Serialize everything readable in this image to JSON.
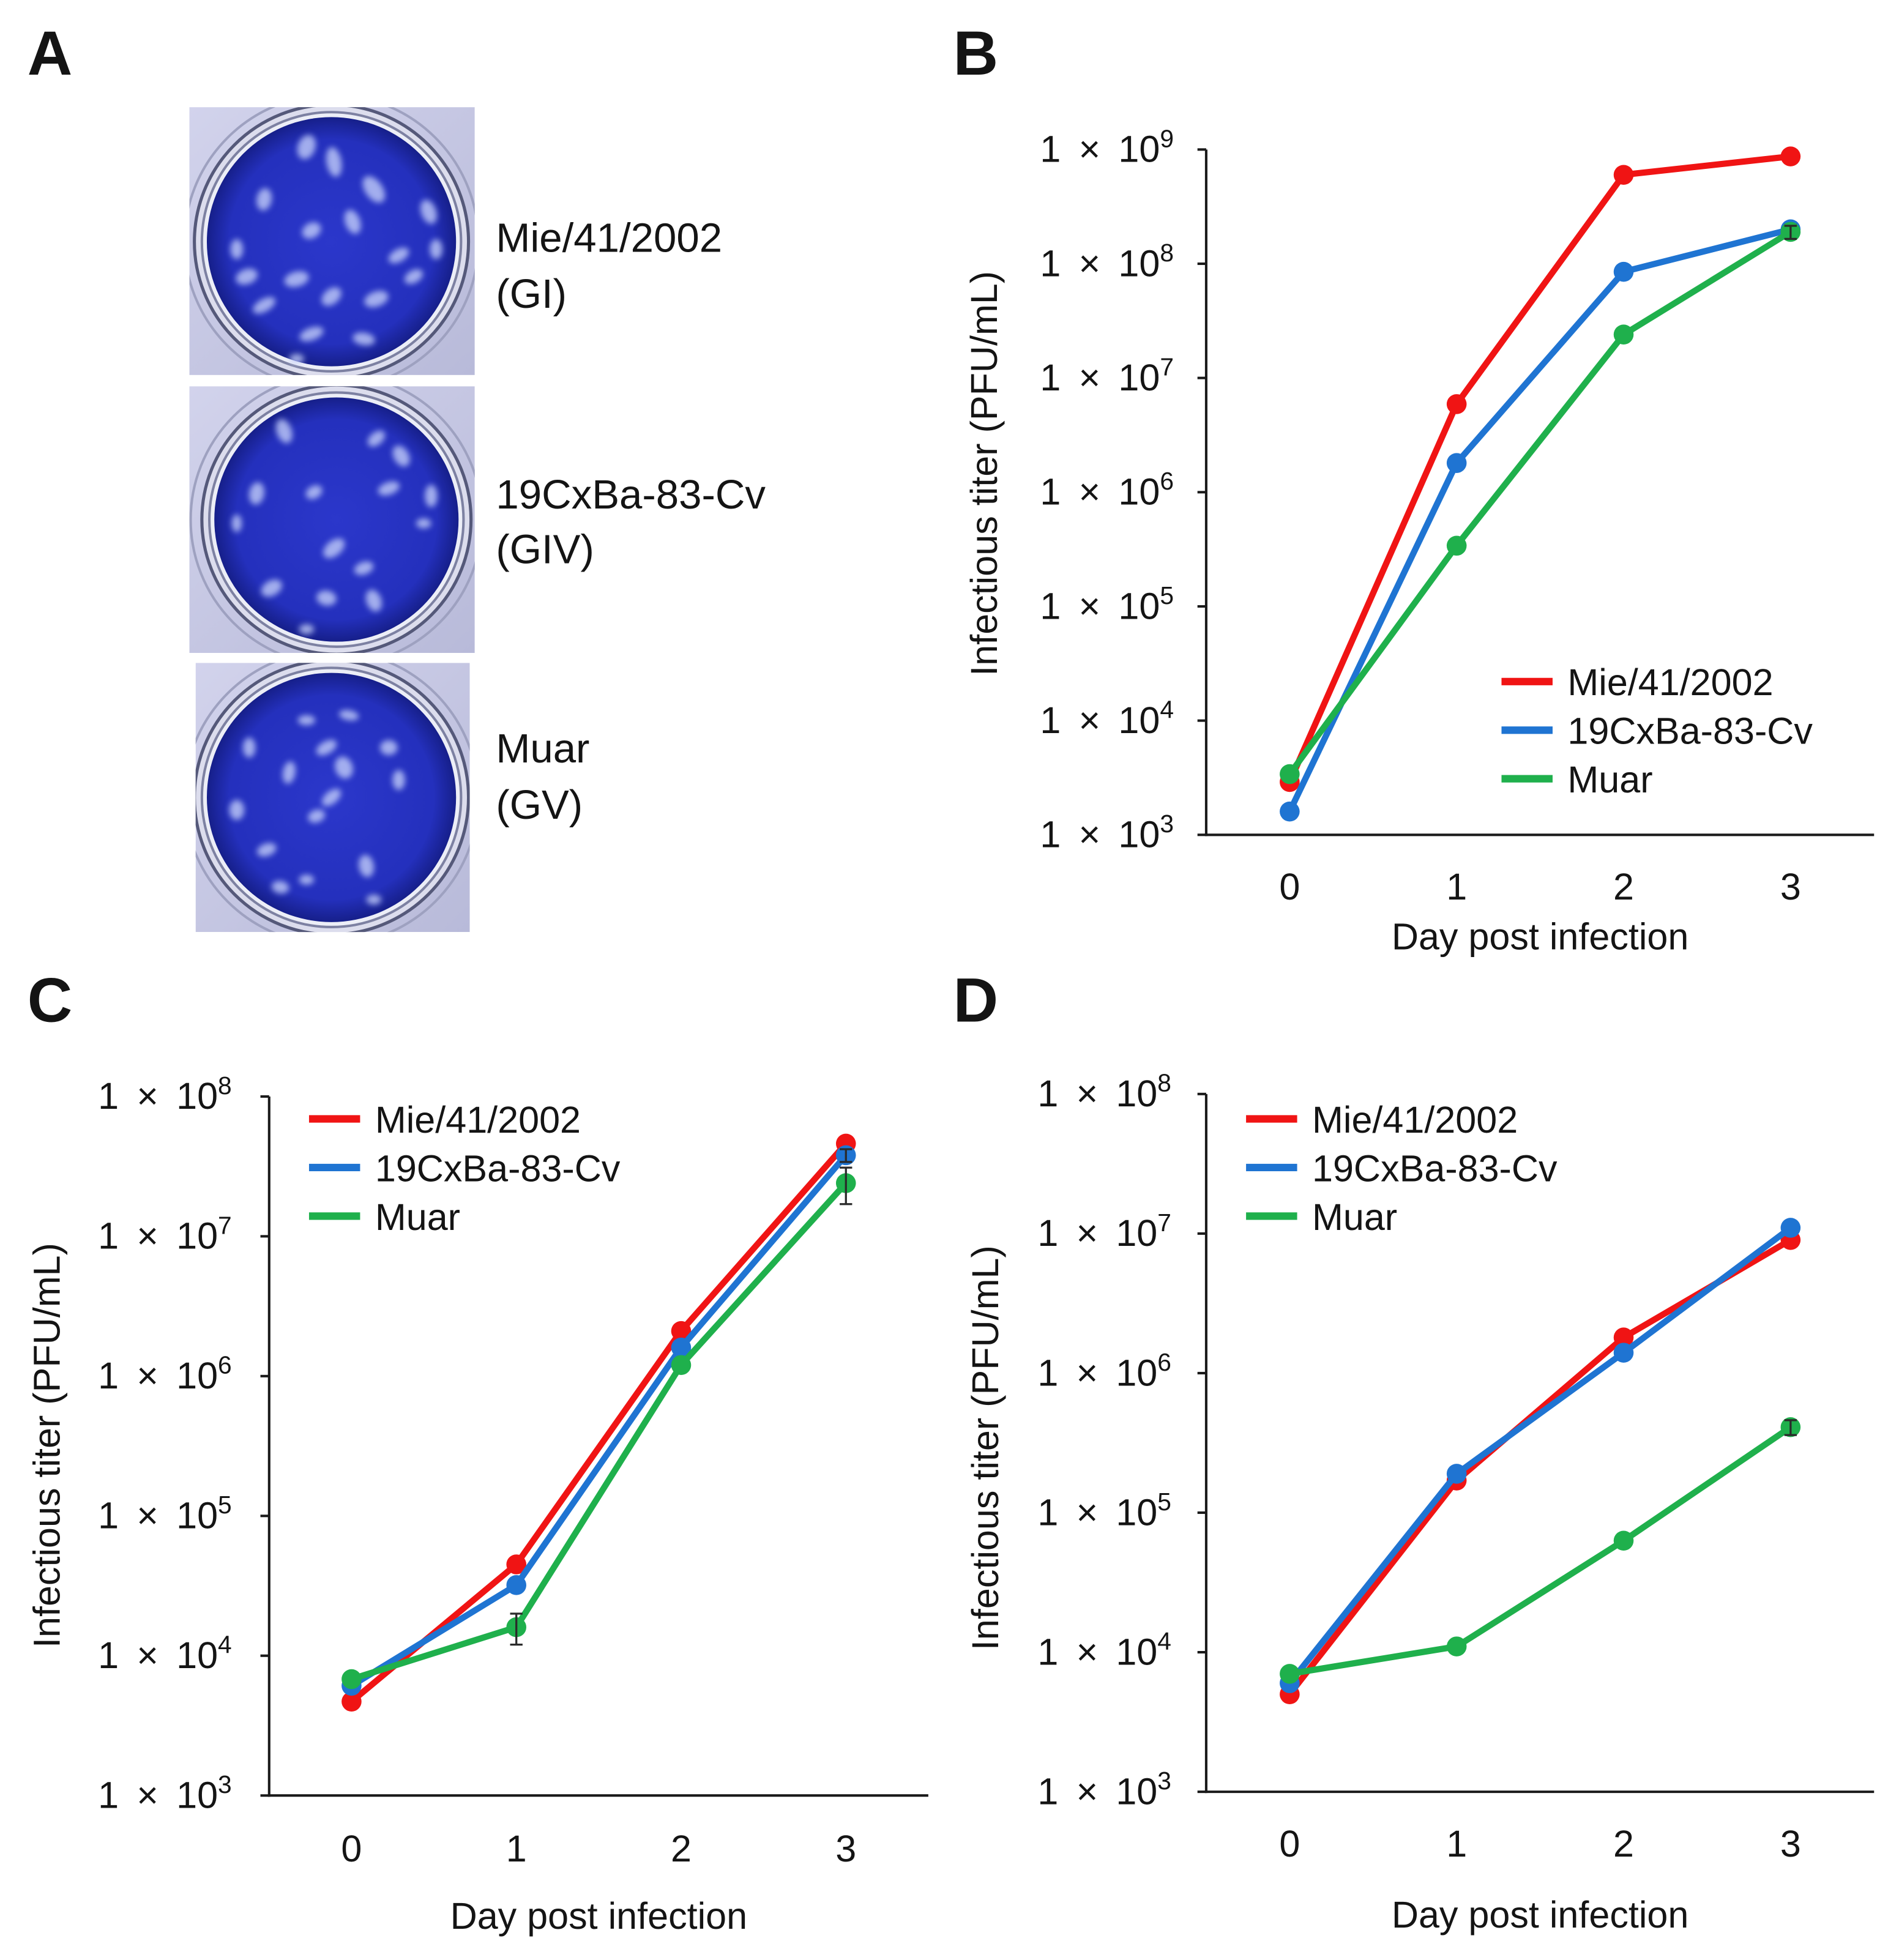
{
  "panel_a": {
    "label": "A",
    "wells": [
      {
        "strain": "Mie/41/2002",
        "genotype": "(GI)"
      },
      {
        "strain": "19CxBa-83-Cv",
        "genotype": "(GIV)"
      },
      {
        "strain": "Muar",
        "genotype": "(GV)"
      }
    ]
  },
  "chart_data": [
    {
      "panel_label": "B",
      "type": "line",
      "x": [
        0,
        1,
        2,
        3
      ],
      "xlabel": "Day post infection",
      "ylabel": "Infectious titer (PFU/mL)",
      "yscale": "log",
      "ylim": [
        1000,
        1000000000
      ],
      "y_tick_prefix": "1 × 10",
      "y_tick_exponents": [
        3,
        4,
        5,
        6,
        7,
        8,
        9
      ],
      "legend_position": "bottom-right",
      "series": [
        {
          "name": "Mie/41/2002",
          "color": "#f01414",
          "values": [
            2900,
            5900000,
            600000000,
            870000000
          ],
          "errors": [
            0,
            0,
            0,
            0
          ]
        },
        {
          "name": "19CxBa-83-Cv",
          "color": "#1f74d2",
          "values": [
            1600,
            1800000,
            85000000,
            200000000
          ],
          "errors": [
            0,
            0,
            0,
            20000000
          ]
        },
        {
          "name": "Muar",
          "color": "#1fb04c",
          "values": [
            3400,
            340000,
            24000000,
            190000000
          ],
          "errors": [
            0,
            0,
            0,
            25000000
          ]
        }
      ]
    },
    {
      "panel_label": "C",
      "type": "line",
      "x": [
        0,
        1,
        2,
        3
      ],
      "xlabel": "Day post infection",
      "ylabel": "Infectious titer (PFU/mL)",
      "yscale": "log",
      "ylim": [
        1000,
        100000000
      ],
      "y_tick_prefix": "1 × 10",
      "y_tick_exponents": [
        3,
        4,
        5,
        6,
        7,
        8
      ],
      "legend_position": "top-left",
      "series": [
        {
          "name": "Mie/41/2002",
          "color": "#f01414",
          "values": [
            4700,
            45000,
            2100000,
            46000000
          ],
          "errors": [
            0,
            0,
            0,
            0
          ]
        },
        {
          "name": "19CxBa-83-Cv",
          "color": "#1f74d2",
          "values": [
            6100,
            32000,
            1600000,
            38000000
          ],
          "errors": [
            0,
            0,
            0,
            4000000
          ]
        },
        {
          "name": "Muar",
          "color": "#1fb04c",
          "values": [
            6800,
            16000,
            1200000,
            24000000
          ],
          "errors": [
            0,
            4000,
            0,
            7000000
          ]
        }
      ]
    },
    {
      "panel_label": "D",
      "type": "line",
      "x": [
        0,
        1,
        2,
        3
      ],
      "xlabel": "Day post infection",
      "ylabel": "Infectious titer (PFU/mL)",
      "yscale": "log",
      "ylim": [
        1000,
        100000000
      ],
      "y_tick_prefix": "1 × 10",
      "y_tick_exponents": [
        3,
        4,
        5,
        6,
        7,
        8
      ],
      "legend_position": "top-left",
      "series": [
        {
          "name": "Mie/41/2002",
          "color": "#f01414",
          "values": [
            5000,
            170000,
            1800000,
            9000000
          ],
          "errors": [
            0,
            0,
            0,
            0
          ]
        },
        {
          "name": "19CxBa-83-Cv",
          "color": "#1f74d2",
          "values": [
            6000,
            190000,
            1400000,
            11000000
          ],
          "errors": [
            0,
            0,
            0,
            0
          ]
        },
        {
          "name": "Muar",
          "color": "#1fb04c",
          "values": [
            7000,
            11000,
            63000,
            410000
          ],
          "errors": [
            0,
            0,
            0,
            50000
          ]
        }
      ]
    }
  ]
}
